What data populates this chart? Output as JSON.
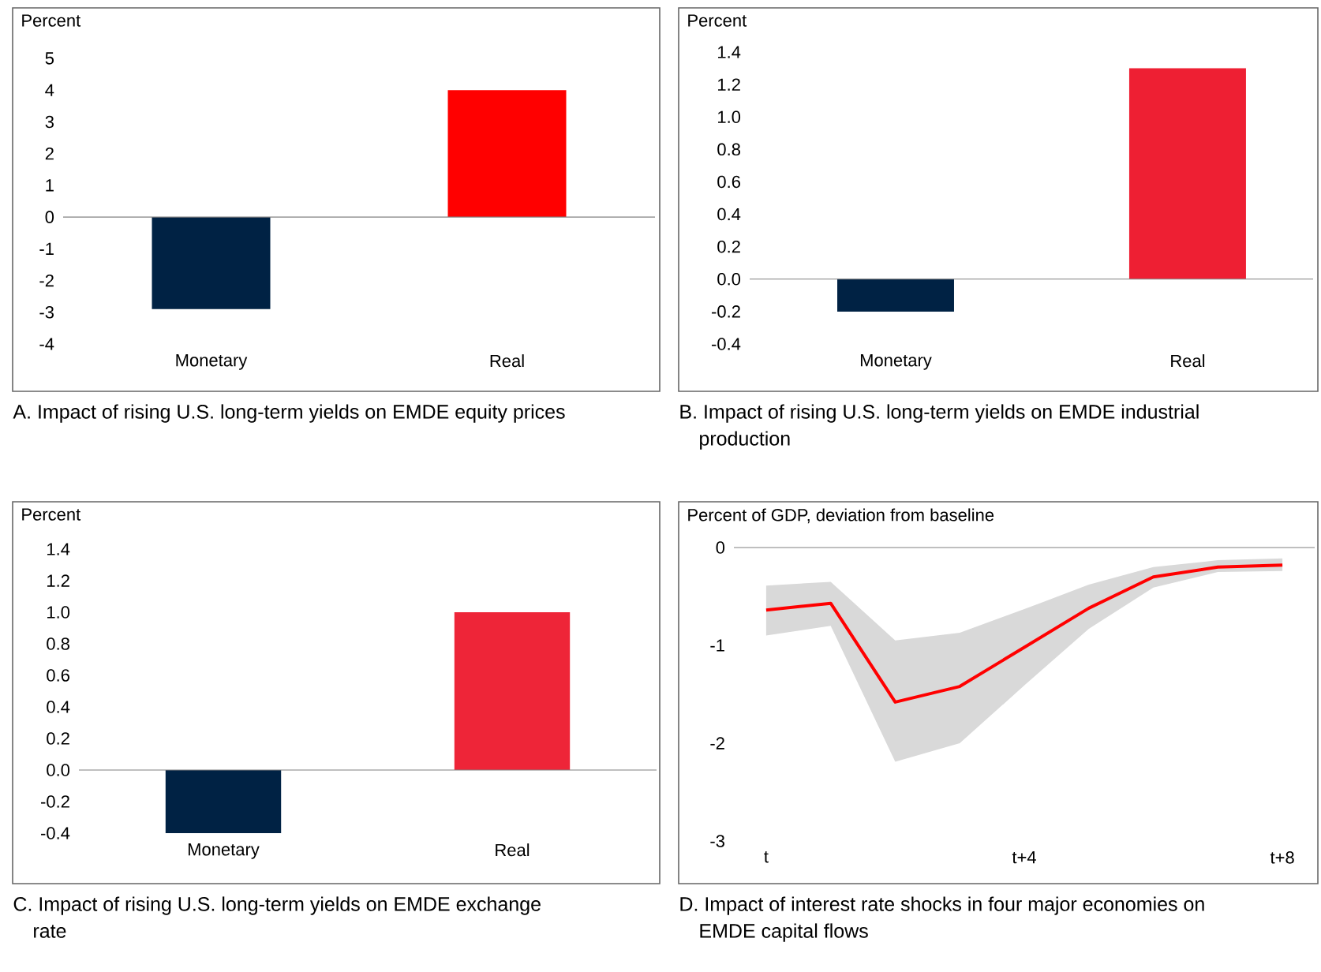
{
  "chart_data": [
    {
      "type": "bar",
      "title": "A. Impact of rising U.S. long-term yields on EMDE equity prices",
      "ylabel": "Percent",
      "categories": [
        "Monetary",
        "Real"
      ],
      "values": [
        -2.9,
        4.0
      ],
      "colors": [
        "#002244",
        "#ff0000"
      ],
      "ylim": [
        -4,
        5
      ],
      "yticks": [
        -4,
        -3,
        -2,
        -1,
        0,
        1,
        2,
        3,
        4,
        5
      ]
    },
    {
      "type": "bar",
      "title": "B. Impact of rising U.S. long-term yields on EMDE industrial production",
      "ylabel": "Percent",
      "categories": [
        "Monetary",
        "Real"
      ],
      "values": [
        -0.2,
        1.3
      ],
      "colors": [
        "#002244",
        "#ee1f33"
      ],
      "ylim": [
        -0.4,
        1.4
      ],
      "yticks": [
        {
          "value": -0.4,
          "label": "-0.4"
        },
        {
          "value": -0.2,
          "label": "-0.2"
        },
        {
          "value": 0,
          "label": "0.0"
        },
        {
          "value": 0.2,
          "label": "0.2"
        },
        {
          "value": 0.4,
          "label": "0.4"
        },
        {
          "value": 0.6,
          "label": "0.6"
        },
        {
          "value": 0.8,
          "label": "0.8"
        },
        {
          "value": 1.0,
          "label": "1.0"
        },
        {
          "value": 1.2,
          "label": "1.2"
        },
        {
          "value": 1.4,
          "label": "1.4"
        }
      ]
    },
    {
      "type": "bar",
      "title": "C. Impact of rising U.S. long-term yields on EMDE exchange rate",
      "ylabel": "Percent",
      "categories": [
        "Monetary",
        "Real"
      ],
      "values": [
        -0.4,
        1.0
      ],
      "colors": [
        "#002244",
        "#ee2538"
      ],
      "ylim": [
        -0.4,
        1.4
      ],
      "yticks": [
        {
          "value": -0.4,
          "label": "-0.4"
        },
        {
          "value": -0.2,
          "label": "-0.2"
        },
        {
          "value": 0,
          "label": "0.0"
        },
        {
          "value": 0.2,
          "label": "0.2"
        },
        {
          "value": 0.4,
          "label": "0.4"
        },
        {
          "value": 0.6,
          "label": "0.6"
        },
        {
          "value": 0.8,
          "label": "0.8"
        },
        {
          "value": 1.0,
          "label": "1.0"
        },
        {
          "value": 1.2,
          "label": "1.2"
        },
        {
          "value": 1.4,
          "label": "1.4"
        }
      ]
    },
    {
      "type": "line",
      "title": "D. Impact of interest rate shocks in four major economies on EMDE capital flows",
      "ylabel": "Percent of GDP, deviation from baseline",
      "categories": [
        "t",
        null,
        null,
        null,
        "t+4",
        null,
        null,
        null,
        "t+8"
      ],
      "series": [
        {
          "color": "#ff0000",
          "values": [
            -0.64,
            -0.57,
            -1.58,
            -1.42,
            -1.02,
            -0.62,
            -0.3,
            -0.2,
            -0.18
          ],
          "lower": [
            -0.9,
            -0.8,
            -2.19,
            -2.0,
            -1.41,
            -0.83,
            -0.41,
            -0.25,
            -0.24
          ],
          "upper": [
            -0.39,
            -0.35,
            -0.95,
            -0.87,
            -0.63,
            -0.38,
            -0.2,
            -0.13,
            -0.11
          ]
        }
      ],
      "ylim": [
        -3,
        0
      ],
      "yticks": [
        -3,
        -2,
        -1,
        0
      ]
    }
  ]
}
